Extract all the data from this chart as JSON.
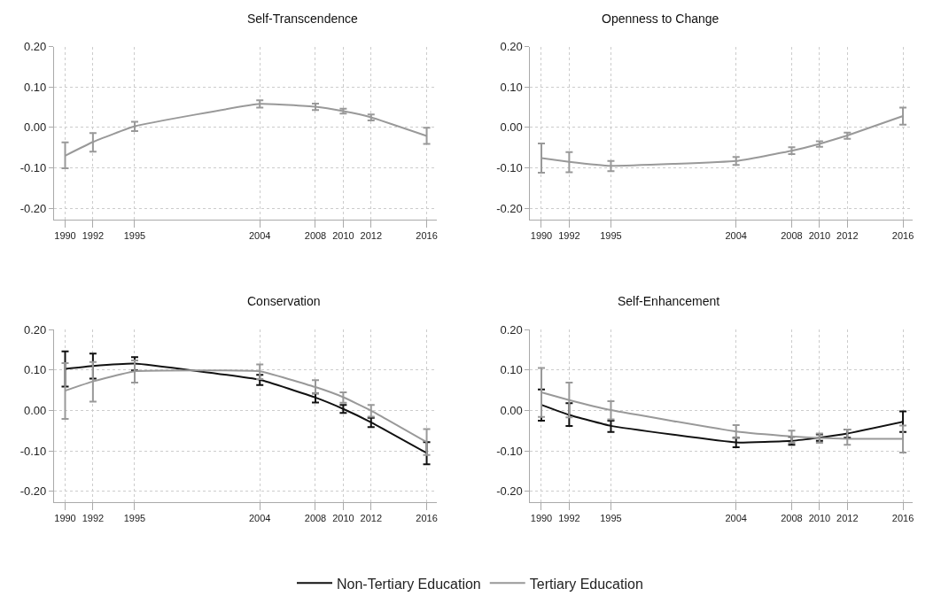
{
  "chart_data": [
    {
      "type": "line",
      "title": "Self-Transcendence",
      "x": [
        1990,
        1992,
        1995,
        2004,
        2008,
        2010,
        2012,
        2016
      ],
      "xlim": [
        1989.2,
        2016.7
      ],
      "ylim": [
        -0.227,
        0.2
      ],
      "xticks": [
        1990,
        1992,
        1995,
        2004,
        2008,
        2010,
        2012,
        2016
      ],
      "yticks": [
        {
          "value": -0.2,
          "label": "-0.20"
        },
        {
          "value": -0.1,
          "label": "-0.10"
        },
        {
          "value": 0,
          "label": "0.00"
        },
        {
          "value": 0.1,
          "label": "0.10"
        },
        {
          "value": 0.2,
          "label": "0.20"
        }
      ],
      "grid": true,
      "legend": "bottom",
      "series": [
        {
          "name": "Tertiary Education",
          "color": "#999999",
          "values": [
            -0.07,
            -0.036,
            0.003,
            0.058,
            0.051,
            0.04,
            0.025,
            -0.021
          ],
          "errors": [
            [
              -0.101,
              -0.037
            ],
            [
              -0.06,
              -0.014
            ],
            [
              -0.009,
              0.014
            ],
            [
              0.049,
              0.067
            ],
            [
              0.043,
              0.059
            ],
            [
              0.034,
              0.046
            ],
            [
              0.017,
              0.032
            ],
            [
              -0.041,
              -0.001
            ]
          ]
        }
      ]
    },
    {
      "type": "line",
      "title": "Openness to Change",
      "x": [
        1990,
        1992,
        1995,
        2004,
        2008,
        2010,
        2012,
        2016
      ],
      "xlim": [
        1989.2,
        2016.7
      ],
      "ylim": [
        -0.227,
        0.2
      ],
      "xticks": [
        1990,
        1992,
        1995,
        2004,
        2008,
        2010,
        2012,
        2016
      ],
      "yticks": [
        {
          "value": -0.2,
          "label": "-0.20"
        },
        {
          "value": -0.1,
          "label": "-0.10"
        },
        {
          "value": 0,
          "label": "0.00"
        },
        {
          "value": 0.1,
          "label": "0.10"
        },
        {
          "value": 0.2,
          "label": "0.20"
        }
      ],
      "grid": true,
      "legend": "bottom",
      "series": [
        {
          "name": "Tertiary Education",
          "color": "#999999",
          "values": [
            -0.076,
            -0.085,
            -0.095,
            -0.083,
            -0.058,
            -0.041,
            -0.02,
            0.028
          ],
          "errors": [
            [
              -0.112,
              -0.04
            ],
            [
              -0.111,
              -0.061
            ],
            [
              -0.108,
              -0.083
            ],
            [
              -0.093,
              -0.073
            ],
            [
              -0.066,
              -0.049
            ],
            [
              -0.048,
              -0.034
            ],
            [
              -0.028,
              -0.013
            ],
            [
              0.007,
              0.049
            ]
          ]
        }
      ]
    },
    {
      "type": "line",
      "title": "Conservation",
      "x": [
        1990,
        1992,
        1995,
        2004,
        2008,
        2010,
        2012,
        2016
      ],
      "xlim": [
        1989.2,
        2016.7
      ],
      "ylim": [
        -0.227,
        0.2
      ],
      "xticks": [
        1990,
        1992,
        1995,
        2004,
        2008,
        2010,
        2012,
        2016
      ],
      "yticks": [
        {
          "value": -0.2,
          "label": "-0.20"
        },
        {
          "value": -0.1,
          "label": "-0.10"
        },
        {
          "value": 0,
          "label": "0.00"
        },
        {
          "value": 0.1,
          "label": "0.10"
        },
        {
          "value": 0.2,
          "label": "0.20"
        }
      ],
      "grid": true,
      "legend": "bottom",
      "series": [
        {
          "name": "Non-Tertiary Education",
          "color": "#111111",
          "values": [
            0.103,
            0.11,
            0.116,
            0.076,
            0.032,
            0.004,
            -0.029,
            -0.105
          ],
          "errors": [
            [
              0.059,
              0.146
            ],
            [
              0.079,
              0.141
            ],
            [
              0.099,
              0.132
            ],
            [
              0.063,
              0.088
            ],
            [
              0.02,
              0.042
            ],
            [
              -0.006,
              0.014
            ],
            [
              -0.041,
              -0.018
            ],
            [
              -0.133,
              -0.078
            ]
          ]
        },
        {
          "name": "Tertiary Education",
          "color": "#999999",
          "values": [
            0.049,
            0.072,
            0.097,
            0.097,
            0.058,
            0.033,
            0.0,
            -0.078
          ],
          "errors": [
            [
              -0.021,
              0.117
            ],
            [
              0.022,
              0.12
            ],
            [
              0.069,
              0.124
            ],
            [
              0.078,
              0.114
            ],
            [
              0.042,
              0.075
            ],
            [
              0.019,
              0.045
            ],
            [
              -0.015,
              0.014
            ],
            [
              -0.11,
              -0.046
            ]
          ]
        }
      ]
    },
    {
      "type": "line",
      "title": "Self-Enhancement",
      "x": [
        1990,
        1992,
        1995,
        2004,
        2008,
        2010,
        2012,
        2016
      ],
      "xlim": [
        1989.2,
        2016.7
      ],
      "ylim": [
        -0.227,
        0.2
      ],
      "xticks": [
        1990,
        1992,
        1995,
        2004,
        2008,
        2010,
        2012,
        2016
      ],
      "yticks": [
        {
          "value": -0.2,
          "label": "-0.20"
        },
        {
          "value": -0.1,
          "label": "-0.10"
        },
        {
          "value": 0,
          "label": "0.00"
        },
        {
          "value": 0.1,
          "label": "0.10"
        },
        {
          "value": 0.2,
          "label": "0.20"
        }
      ],
      "grid": true,
      "legend": "bottom",
      "series": [
        {
          "name": "Non-Tertiary Education",
          "color": "#111111",
          "values": [
            0.014,
            -0.011,
            -0.038,
            -0.079,
            -0.075,
            -0.067,
            -0.057,
            -0.028
          ],
          "errors": [
            [
              -0.025,
              0.052
            ],
            [
              -0.038,
              0.018
            ],
            [
              -0.053,
              -0.025
            ],
            [
              -0.091,
              -0.067
            ],
            [
              -0.085,
              -0.065
            ],
            [
              -0.075,
              -0.059
            ],
            [
              -0.067,
              -0.047
            ],
            [
              -0.053,
              -0.002
            ]
          ]
        },
        {
          "name": "Tertiary Education",
          "color": "#999999",
          "values": [
            0.045,
            0.026,
            0.001,
            -0.052,
            -0.064,
            -0.068,
            -0.07,
            -0.07
          ],
          "errors": [
            [
              -0.016,
              0.105
            ],
            [
              -0.017,
              0.069
            ],
            [
              -0.022,
              0.023
            ],
            [
              -0.068,
              -0.036
            ],
            [
              -0.08,
              -0.05
            ],
            [
              -0.08,
              -0.057
            ],
            [
              -0.085,
              -0.047
            ],
            [
              -0.104,
              -0.037
            ]
          ]
        }
      ]
    }
  ]
}
